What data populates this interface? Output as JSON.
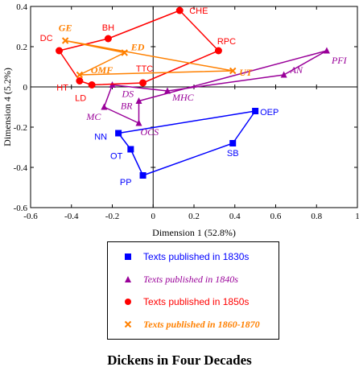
{
  "chart_data": {
    "type": "scatter",
    "title": "Dickens in Four Decades",
    "xlabel": "Dimension 1 (52.8%)",
    "ylabel": "Dimension 4 (5.2%)",
    "xlim": [
      -0.6,
      1
    ],
    "ylim": [
      -0.6,
      0.4
    ],
    "xticks": [
      "-0.6",
      "-0.4",
      "-0.2",
      "0",
      "0.2",
      "0.4",
      "0.6",
      "0.8",
      "1"
    ],
    "yticks": [
      "0.4",
      "0.2",
      "0",
      "-0.2",
      "-0.4",
      "-0.6"
    ],
    "grid": false,
    "legend_position": "bottom-center",
    "series": [
      {
        "name": "Texts published in 1830s",
        "color": "#0000ff",
        "marker": "square",
        "label_style": "sans",
        "points": [
          {
            "label": "OEP",
            "x": 0.5,
            "y": -0.12
          },
          {
            "label": "SB",
            "x": 0.39,
            "y": -0.28
          },
          {
            "label": "PP",
            "x": -0.05,
            "y": -0.44
          },
          {
            "label": "OT",
            "x": -0.11,
            "y": -0.31
          },
          {
            "label": "NN",
            "x": -0.17,
            "y": -0.23
          }
        ]
      },
      {
        "name": "Texts published in 1840s",
        "color": "#990099",
        "marker": "triangle",
        "label_style": "serif-italic",
        "points": [
          {
            "label": "PFI",
            "x": 0.85,
            "y": 0.18
          },
          {
            "label": "AN",
            "x": 0.64,
            "y": 0.06
          },
          {
            "label": "MHC",
            "x": 0.07,
            "y": -0.02
          },
          {
            "label": "DS",
            "x": -0.2,
            "y": 0.01
          },
          {
            "label": "MC",
            "x": -0.24,
            "y": -0.1
          },
          {
            "label": "OCS",
            "x": -0.07,
            "y": -0.18
          },
          {
            "label": "BR",
            "x": -0.07,
            "y": -0.07
          }
        ]
      },
      {
        "name": "Texts published in 1850s",
        "color": "#ff0000",
        "marker": "circle",
        "label_style": "sans",
        "points": [
          {
            "label": "CHE",
            "x": 0.13,
            "y": 0.38
          },
          {
            "label": "RPC",
            "x": 0.32,
            "y": 0.18
          },
          {
            "label": "TTC",
            "x": -0.05,
            "y": 0.02
          },
          {
            "label": "LD",
            "x": -0.3,
            "y": 0.01
          },
          {
            "label": "HT",
            "x": -0.36,
            "y": 0.03
          },
          {
            "label": "DC",
            "x": -0.46,
            "y": 0.18
          },
          {
            "label": "BH",
            "x": -0.22,
            "y": 0.24
          }
        ]
      },
      {
        "name": "Texts published in 1860-1870",
        "color": "#ff8000",
        "marker": "x",
        "label_style": "serif-bold-italic",
        "points": [
          {
            "label": "GE",
            "x": -0.43,
            "y": 0.23
          },
          {
            "label": "UT",
            "x": 0.39,
            "y": 0.08
          },
          {
            "label": "OMF",
            "x": -0.36,
            "y": 0.06
          },
          {
            "label": "ED",
            "x": -0.14,
            "y": 0.17
          }
        ]
      }
    ]
  }
}
